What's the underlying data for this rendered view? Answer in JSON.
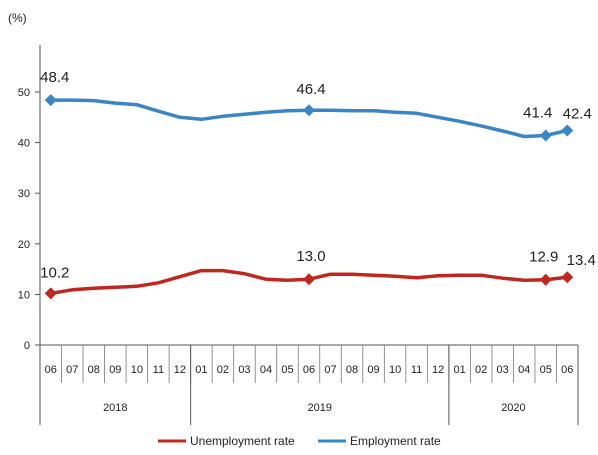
{
  "chart_data": {
    "type": "line",
    "ylabel": "(%)",
    "ylim": [
      0,
      50
    ],
    "yticks": [
      0,
      10,
      20,
      30,
      40,
      50
    ],
    "grid": false,
    "legend_position": "bottom",
    "x": [
      "06",
      "07",
      "08",
      "09",
      "10",
      "11",
      "12",
      "01",
      "02",
      "03",
      "04",
      "05",
      "06",
      "07",
      "08",
      "09",
      "10",
      "11",
      "12",
      "01",
      "02",
      "03",
      "04",
      "05",
      "06"
    ],
    "year_groups": [
      {
        "label": "2018",
        "start": 0,
        "end": 6
      },
      {
        "label": "2019",
        "start": 7,
        "end": 18
      },
      {
        "label": "2020",
        "start": 19,
        "end": 24
      }
    ],
    "series": [
      {
        "name": "Unemployment rate",
        "color": "#C0281F",
        "values": [
          10.2,
          10.9,
          11.2,
          11.4,
          11.6,
          12.3,
          13.5,
          14.7,
          14.7,
          14.1,
          13.0,
          12.8,
          13.0,
          14.0,
          14.0,
          13.8,
          13.6,
          13.3,
          13.7,
          13.8,
          13.8,
          13.2,
          12.8,
          12.9,
          13.4
        ],
        "labels": [
          {
            "index": 0,
            "text": "10.2",
            "dx": 4,
            "dy": -16
          },
          {
            "index": 12,
            "text": "13.0",
            "dx": 2,
            "dy": -18
          },
          {
            "index": 23,
            "text": "12.9",
            "dx": -2,
            "dy": -18
          },
          {
            "index": 24,
            "text": "13.4",
            "dx": 14,
            "dy": -12
          }
        ]
      },
      {
        "name": "Employment rate",
        "color": "#3B85C4",
        "values": [
          48.4,
          48.4,
          48.3,
          47.8,
          47.5,
          46.2,
          45.0,
          44.6,
          45.2,
          45.6,
          46.0,
          46.3,
          46.4,
          46.4,
          46.3,
          46.3,
          46.0,
          45.8,
          45.0,
          44.2,
          43.3,
          42.3,
          41.2,
          41.4,
          42.4
        ],
        "labels": [
          {
            "index": 0,
            "text": "48.4",
            "dx": 4,
            "dy": -18
          },
          {
            "index": 12,
            "text": "46.4",
            "dx": 2,
            "dy": -16
          },
          {
            "index": 23,
            "text": "41.4",
            "dx": -8,
            "dy": -18
          },
          {
            "index": 24,
            "text": "42.4",
            "dx": 10,
            "dy": -12
          }
        ]
      }
    ],
    "markers": [
      0,
      12,
      23,
      24
    ]
  }
}
